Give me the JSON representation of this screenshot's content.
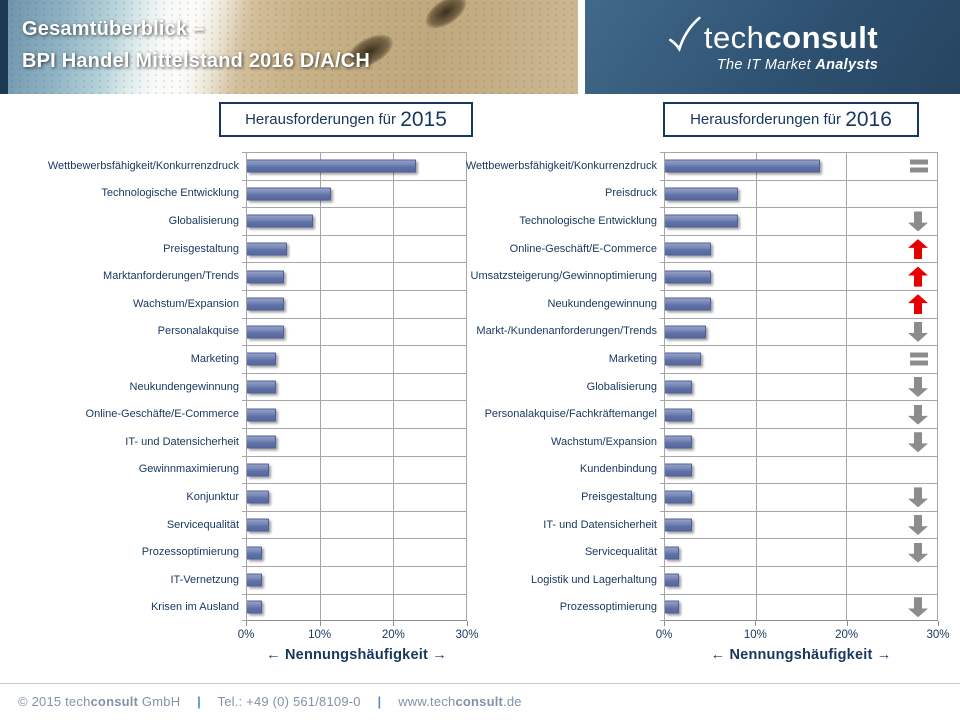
{
  "header": {
    "title_line1": "Gesamtüberblick –",
    "title_line2": "BPI Handel Mittelstand 2016 D/A/CH",
    "logo": {
      "brand_light": "tech",
      "brand_bold": "consult",
      "tagline_regular": "The IT Market ",
      "tagline_bold": "Analysts"
    }
  },
  "panels": {
    "left": {
      "title_prefix": "Herausforderungen für ",
      "year": "2015"
    },
    "right": {
      "title_prefix": "Herausforderungen für ",
      "year": "2016"
    }
  },
  "chart_data": [
    {
      "type": "bar",
      "orientation": "horizontal",
      "title": "Herausforderungen für 2015",
      "categories": [
        "Wettbewerbsfähigkeit/Konkurrenzdruck",
        "Technologische Entwicklung",
        "Globalisierung",
        "Preisgestaltung",
        "Marktanforderungen/Trends",
        "Wachstum/Expansion",
        "Personalakquise",
        "Marketing",
        "Neukundengewinnung",
        "Online-Geschäfte/E-Commerce",
        "IT- und Datensicherheit",
        "Gewinnmaximierung",
        "Konjunktur",
        "Servicequalität",
        "Prozessoptimierung",
        "IT-Vernetzung",
        "Krisen im Ausland"
      ],
      "values": [
        23,
        11.5,
        9,
        5.5,
        5,
        5,
        5,
        4,
        4,
        4,
        4,
        3,
        3,
        3,
        2,
        2,
        2
      ],
      "unit": "%",
      "xlabel": "Nennungshäufigkeit",
      "axis_label_display": "← Nennungshäufigkeit →",
      "xlim": [
        0,
        30
      ],
      "xticks": [
        "0%",
        "10%",
        "20%",
        "30%"
      ],
      "grid": true,
      "legend": "none",
      "bar_color": "#6877a9"
    },
    {
      "type": "bar",
      "orientation": "horizontal",
      "title": "Herausforderungen für 2016",
      "categories": [
        "Wettbewerbsfähigkeit/Konkurrenzdruck",
        "Preisdruck",
        "Technologische Entwicklung",
        "Online-Geschäft/E-Commerce",
        "Umsatzsteigerung/Gewinnoptimierung",
        "Neukundengewinnung",
        "Markt-/Kundenanforderungen/Trends",
        "Marketing",
        "Globalisierung",
        "Personalakquise/Fachkräftemangel",
        "Wachstum/Expansion",
        "Kundenbindung",
        "Preisgestaltung",
        "IT- und Datensicherheit",
        "Servicequalität",
        "Logistik und Lagerhaltung",
        "Prozessoptimierung"
      ],
      "values": [
        17,
        8,
        8,
        5,
        5,
        5,
        4.5,
        4,
        3,
        3,
        3,
        3,
        3,
        3,
        1.5,
        1.5,
        1.5
      ],
      "trend": [
        "equal",
        "none",
        "down",
        "up",
        "up",
        "up",
        "down",
        "equal",
        "down",
        "down",
        "down",
        "none",
        "down",
        "down",
        "down",
        "none",
        "down"
      ],
      "trend_colors": {
        "up": "#e60000",
        "down": "#8c8c8c",
        "equal": "#8c8c8c"
      },
      "unit": "%",
      "xlabel": "Nennungshäufigkeit",
      "axis_label_display": "← Nennungshäufigkeit →",
      "xlim": [
        0,
        30
      ],
      "xticks": [
        "0%",
        "10%",
        "20%",
        "30%"
      ],
      "grid": true,
      "legend": "none",
      "bar_color": "#6877a9"
    }
  ],
  "footer": {
    "copyright_prefix": "© 2015 tech",
    "copyright_bold": "consult",
    "copyright_suffix": " GmbH",
    "separator": "|",
    "phone": "Tel.: +49 (0) 561/8109-0",
    "website_prefix": "www.tech",
    "website_bold": "consult",
    "website_suffix": ".de"
  },
  "colors": {
    "navy_text": "#17375e",
    "bar_fill": "#6877a9",
    "up_arrow_red": "#e60000",
    "symbol_gray": "#8c8c8c",
    "logo_panel_blue": "#2f5272",
    "gridline_gray": "#a6a6a6"
  }
}
